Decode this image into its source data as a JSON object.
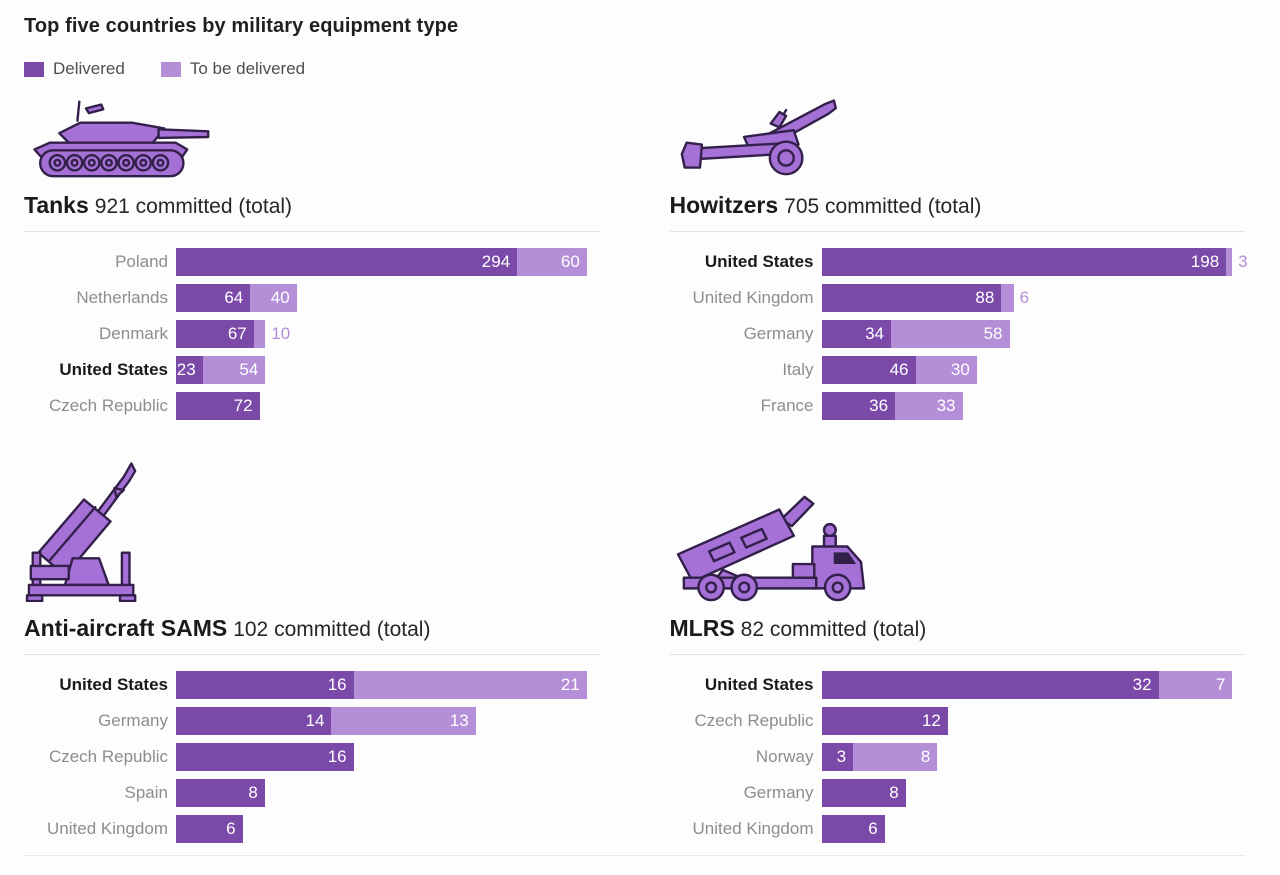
{
  "page": {
    "title": "Top five countries by military equipment type"
  },
  "legend": {
    "delivered_label": "Delivered",
    "to_be_delivered_label": "To be delivered"
  },
  "colors": {
    "delivered": "#7b4aa8",
    "to_be_delivered": "#b48fd8",
    "icon_fill": "#a571d6",
    "icon_outline": "#33204a",
    "label_gray": "#8d8d8d",
    "text_black": "#1a1a1a",
    "value_text": "#ffffff"
  },
  "chart_data": [
    {
      "type": "bar",
      "orientation": "horizontal",
      "icon": "tank-icon",
      "title": "Tanks",
      "subtitle": "921 committed (total)",
      "committed_total": 921,
      "series_names": [
        "Delivered",
        "To be delivered"
      ],
      "xlim": [
        0,
        354
      ],
      "grid": false,
      "legend_position": "top",
      "rows": [
        {
          "country": "Poland",
          "delivered": 294,
          "to_be_delivered": 60,
          "bold": false
        },
        {
          "country": "Netherlands",
          "delivered": 64,
          "to_be_delivered": 40,
          "bold": false
        },
        {
          "country": "Denmark",
          "delivered": 67,
          "to_be_delivered": 10,
          "bold": false
        },
        {
          "country": "United States",
          "delivered": 23,
          "to_be_delivered": 54,
          "bold": true
        },
        {
          "country": "Czech Republic",
          "delivered": 72,
          "to_be_delivered": 0,
          "bold": false
        }
      ]
    },
    {
      "type": "bar",
      "orientation": "horizontal",
      "icon": "howitzer-icon",
      "title": "Howitzers",
      "subtitle": "705 committed (total)",
      "committed_total": 705,
      "series_names": [
        "Delivered",
        "To be delivered"
      ],
      "xlim": [
        0,
        201
      ],
      "grid": false,
      "legend_position": "top",
      "rows": [
        {
          "country": "United States",
          "delivered": 198,
          "to_be_delivered": 3,
          "bold": true
        },
        {
          "country": "United Kingdom",
          "delivered": 88,
          "to_be_delivered": 6,
          "bold": false
        },
        {
          "country": "Germany",
          "delivered": 34,
          "to_be_delivered": 58,
          "bold": false
        },
        {
          "country": "Italy",
          "delivered": 46,
          "to_be_delivered": 30,
          "bold": false
        },
        {
          "country": "France",
          "delivered": 36,
          "to_be_delivered": 33,
          "bold": false
        }
      ]
    },
    {
      "type": "bar",
      "orientation": "horizontal",
      "icon": "sam-launcher-icon",
      "title": "Anti-aircraft SAMS",
      "subtitle": "102 committed (total)",
      "committed_total": 102,
      "series_names": [
        "Delivered",
        "To be delivered"
      ],
      "xlim": [
        0,
        37
      ],
      "grid": false,
      "legend_position": "top",
      "rows": [
        {
          "country": "United States",
          "delivered": 16,
          "to_be_delivered": 21,
          "bold": true
        },
        {
          "country": "Germany",
          "delivered": 14,
          "to_be_delivered": 13,
          "bold": false
        },
        {
          "country": "Czech Republic",
          "delivered": 16,
          "to_be_delivered": 0,
          "bold": false
        },
        {
          "country": "Spain",
          "delivered": 8,
          "to_be_delivered": 0,
          "bold": false
        },
        {
          "country": "United Kingdom",
          "delivered": 6,
          "to_be_delivered": 0,
          "bold": false
        }
      ]
    },
    {
      "type": "bar",
      "orientation": "horizontal",
      "icon": "mlrs-icon",
      "title": "MLRS",
      "subtitle": "82 committed (total)",
      "committed_total": 82,
      "series_names": [
        "Delivered",
        "To be delivered"
      ],
      "xlim": [
        0,
        39
      ],
      "grid": false,
      "legend_position": "top",
      "rows": [
        {
          "country": "United States",
          "delivered": 32,
          "to_be_delivered": 7,
          "bold": true
        },
        {
          "country": "Czech Republic",
          "delivered": 12,
          "to_be_delivered": 0,
          "bold": false
        },
        {
          "country": "Norway",
          "delivered": 3,
          "to_be_delivered": 8,
          "bold": false
        },
        {
          "country": "Germany",
          "delivered": 8,
          "to_be_delivered": 0,
          "bold": false
        },
        {
          "country": "United Kingdom",
          "delivered": 6,
          "to_be_delivered": 0,
          "bold": false
        }
      ]
    }
  ]
}
